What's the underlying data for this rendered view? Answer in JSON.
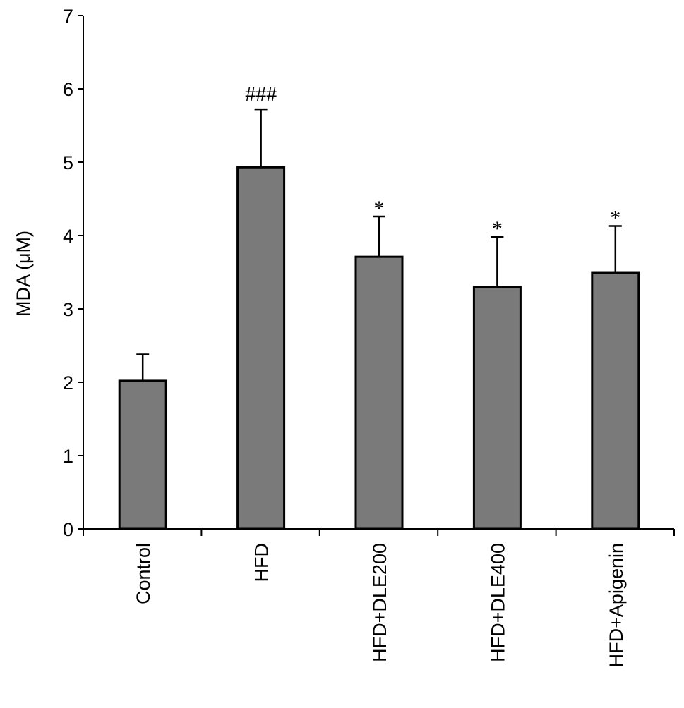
{
  "chart_data": {
    "type": "bar",
    "title": "",
    "xlabel": "",
    "ylabel": "MDA (μM)",
    "ylim": [
      0,
      7
    ],
    "yticks": [
      0,
      1,
      2,
      3,
      4,
      5,
      6,
      7
    ],
    "grid": false,
    "categories": [
      "Control",
      "HFD",
      "HFD+DLE200",
      "HFD+DLE400",
      "HFD+Apigenin"
    ],
    "values": [
      2.02,
      4.93,
      3.71,
      3.3,
      3.49
    ],
    "errors": [
      0.36,
      0.79,
      0.55,
      0.68,
      0.64
    ],
    "annotations": [
      "",
      "###",
      "*",
      "*",
      "*"
    ],
    "colors": {
      "bar": "#7a7a7a",
      "edge": "#000000"
    }
  }
}
